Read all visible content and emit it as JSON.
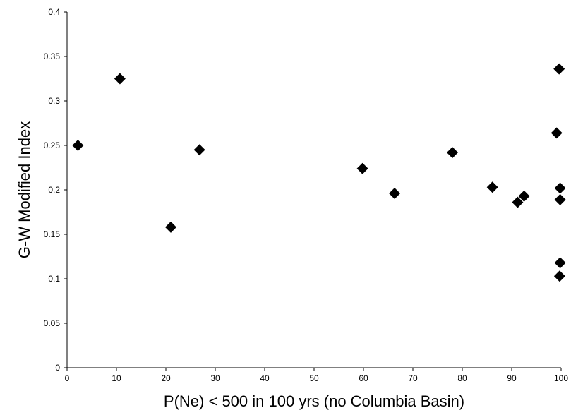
{
  "chart_data": {
    "type": "scatter",
    "title": "",
    "xlabel": "P(Ne) < 500 in 100 yrs (no Columbia Basin)",
    "ylabel": "G-W Modified Index",
    "xlim": [
      0,
      100
    ],
    "ylim": [
      0,
      0.4
    ],
    "x_ticks": [
      "0",
      "10",
      "20",
      "30",
      "40",
      "50",
      "60",
      "70",
      "80",
      "90",
      "100"
    ],
    "y_ticks": [
      "0",
      "0.05",
      "0.1",
      "0.15",
      "0.2",
      "0.25",
      "0.3",
      "0.35",
      "0.4"
    ],
    "marker": "diamond",
    "marker_color": "#000000",
    "grid": false,
    "legend": "none",
    "points": [
      {
        "x": 2.2,
        "y": 0.25
      },
      {
        "x": 10.7,
        "y": 0.325
      },
      {
        "x": 21.0,
        "y": 0.158
      },
      {
        "x": 26.8,
        "y": 0.245
      },
      {
        "x": 59.8,
        "y": 0.224
      },
      {
        "x": 66.3,
        "y": 0.196
      },
      {
        "x": 78.0,
        "y": 0.242
      },
      {
        "x": 86.1,
        "y": 0.203
      },
      {
        "x": 91.2,
        "y": 0.186
      },
      {
        "x": 92.5,
        "y": 0.193
      },
      {
        "x": 99.1,
        "y": 0.264
      },
      {
        "x": 99.6,
        "y": 0.336
      },
      {
        "x": 99.8,
        "y": 0.202
      },
      {
        "x": 99.8,
        "y": 0.189
      },
      {
        "x": 99.8,
        "y": 0.118
      },
      {
        "x": 99.7,
        "y": 0.103
      }
    ]
  }
}
